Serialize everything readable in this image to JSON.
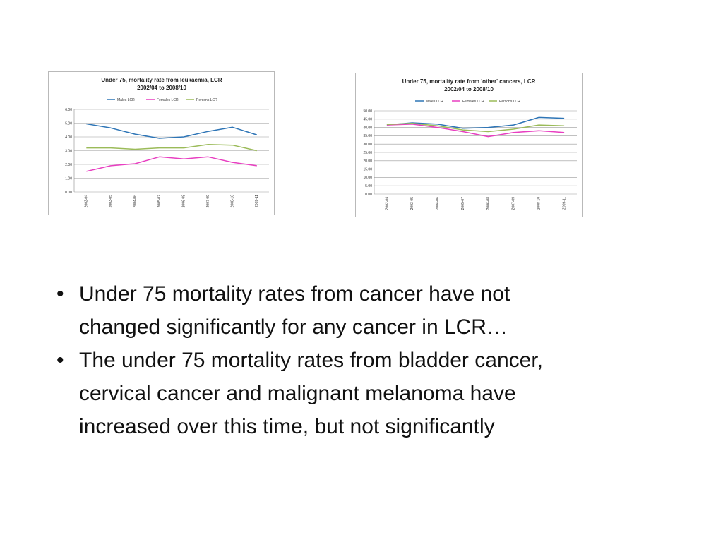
{
  "charts": [
    {
      "type": "line",
      "title": "Under 75, mortality rate from leukaemia, LCR 2002/04 to 2008/10",
      "categories": [
        "2002-04",
        "2003-05",
        "2004-06",
        "2005-07",
        "2006-08",
        "2007-09",
        "2008-10",
        "2009-11"
      ],
      "ylim": [
        0,
        6
      ],
      "yticks": [
        "0.00",
        "1.00",
        "2.00",
        "3.00",
        "4.00",
        "5.00",
        "6.00"
      ],
      "grid": true,
      "legend_position": "top",
      "series": [
        {
          "name": "Males LCR",
          "color": "#2e75b6",
          "values": [
            4.95,
            4.65,
            4.2,
            3.9,
            4.0,
            4.4,
            4.7,
            4.15
          ]
        },
        {
          "name": "Females LCR",
          "color": "#e83fc1",
          "values": [
            1.5,
            1.9,
            2.05,
            2.55,
            2.4,
            2.55,
            2.15,
            1.9
          ]
        },
        {
          "name": "Persons LCR",
          "color": "#9bbb59",
          "values": [
            3.2,
            3.2,
            3.1,
            3.2,
            3.2,
            3.45,
            3.4,
            3.0
          ]
        }
      ]
    },
    {
      "type": "line",
      "title": "Under 75, mortality rate from 'other' cancers, LCR 2002/04 to 2008/10",
      "categories": [
        "2002-04",
        "2003-05",
        "2004-06",
        "2005-07",
        "2006-08",
        "2007-09",
        "2008-10",
        "2009-11"
      ],
      "ylim": [
        0,
        50
      ],
      "yticks": [
        "0.00",
        "5.00",
        "10.00",
        "15.00",
        "20.00",
        "25.00",
        "30.00",
        "35.00",
        "40.00",
        "45.00",
        "50.00"
      ],
      "grid": true,
      "legend_position": "top",
      "series": [
        {
          "name": "Males LCR",
          "color": "#2e75b6",
          "values": [
            41.5,
            42.8,
            42.0,
            39.5,
            40.0,
            41.5,
            46.0,
            45.5
          ]
        },
        {
          "name": "Females LCR",
          "color": "#e83fc1",
          "values": [
            41.5,
            42.0,
            40.0,
            37.5,
            34.5,
            37.0,
            38.0,
            37.0
          ]
        },
        {
          "name": "Persons LCR",
          "color": "#9bbb59",
          "values": [
            41.8,
            42.5,
            41.0,
            38.5,
            37.5,
            39.0,
            41.5,
            41.0
          ]
        }
      ]
    }
  ],
  "bullets": [
    {
      "line1": "Under 75 mortality rates from cancer have not",
      "line2": "changed significantly for any cancer in LCR…"
    },
    {
      "line1": "The under 75 mortality rates from bladder cancer,",
      "line2": "cervical cancer and malignant melanoma have",
      "line3": "increased over this time, but not significantly"
    }
  ],
  "bullet_glyph": "•"
}
